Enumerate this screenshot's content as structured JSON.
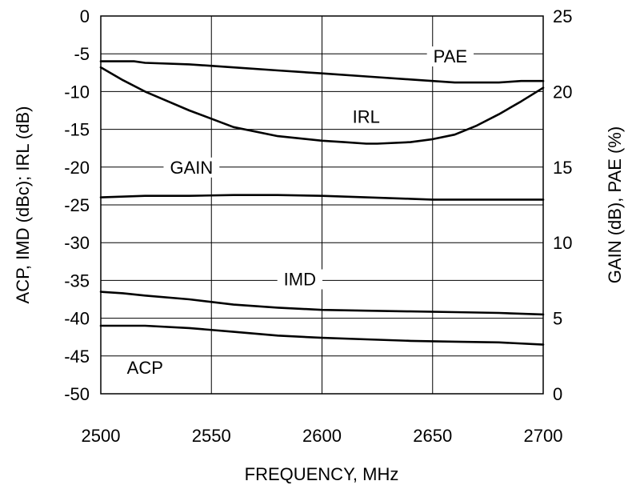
{
  "chart_data": {
    "type": "line",
    "title": "",
    "xlabel": "FREQUENCY, MHz",
    "ylabel_left": "ACP, IMD (dBc); IRL (dB)",
    "ylabel_right": "GAIN (dB), PAE (%)",
    "xlim": [
      2500,
      2700
    ],
    "ylim_left": [
      -50,
      0
    ],
    "ylim_right": [
      0,
      25
    ],
    "x_ticks": [
      "2500",
      "2550",
      "2600",
      "2650",
      "2700"
    ],
    "y_ticks_left": [
      "0",
      "-5",
      "-10",
      "-15",
      "-20",
      "-25",
      "-30",
      "-35",
      "-40",
      "-45",
      "-50"
    ],
    "y_ticks_right": [
      "25",
      "20",
      "15",
      "10",
      "5",
      "0"
    ],
    "grid": true,
    "series": [
      {
        "name": "PAE",
        "axis": "right",
        "x": [
          2500,
          2515,
          2520,
          2540,
          2560,
          2580,
          2600,
          2620,
          2640,
          2660,
          2670,
          2680,
          2690,
          2700
        ],
        "y": [
          22,
          22,
          21.9,
          21.8,
          21.6,
          21.4,
          21.2,
          21.0,
          20.8,
          20.6,
          20.6,
          20.6,
          20.7,
          20.7
        ]
      },
      {
        "name": "IRL",
        "axis": "left",
        "x": [
          2500,
          2510,
          2520,
          2540,
          2560,
          2580,
          2590,
          2600,
          2610,
          2620,
          2625,
          2640,
          2650,
          2660,
          2670,
          2680,
          2690,
          2700
        ],
        "y": [
          -6.8,
          -8.5,
          -10,
          -12.5,
          -14.7,
          -15.9,
          -16.2,
          -16.5,
          -16.7,
          -16.9,
          -16.9,
          -16.7,
          -16.3,
          -15.7,
          -14.5,
          -13.0,
          -11.3,
          -9.5
        ],
        "label_x": 2620,
        "label_y": -13.3
      },
      {
        "name": "GAIN",
        "axis": "right",
        "x": [
          2500,
          2520,
          2540,
          2560,
          2580,
          2600,
          2620,
          2640,
          2650,
          2660,
          2680,
          2700
        ],
        "y": [
          13.0,
          13.1,
          13.1,
          13.15,
          13.15,
          13.1,
          13.0,
          12.9,
          12.85,
          12.85,
          12.85,
          12.85
        ]
      },
      {
        "name": "IMD",
        "axis": "left",
        "x": [
          2500,
          2510,
          2520,
          2540,
          2560,
          2580,
          2600,
          2620,
          2640,
          2660,
          2680,
          2700
        ],
        "y": [
          -36.5,
          -36.7,
          -37.0,
          -37.5,
          -38.2,
          -38.6,
          -38.9,
          -39.0,
          -39.1,
          -39.2,
          -39.3,
          -39.5
        ],
        "label_x": 2590,
        "label_y": -34.8
      },
      {
        "name": "ACP",
        "axis": "left",
        "x": [
          2500,
          2515,
          2520,
          2540,
          2560,
          2580,
          2600,
          2620,
          2640,
          2660,
          2680,
          2700
        ],
        "y": [
          -41.0,
          -41.0,
          -41.0,
          -41.3,
          -41.8,
          -42.3,
          -42.6,
          -42.8,
          -43.0,
          -43.1,
          -43.2,
          -43.5
        ],
        "label_x": 2520,
        "label_y": -46.5
      }
    ],
    "annotations": [
      {
        "text": "PAE",
        "x": 2658,
        "y_left": -5.3
      },
      {
        "text": "GAIN",
        "x": 2541,
        "y_left": -20.0
      }
    ]
  }
}
